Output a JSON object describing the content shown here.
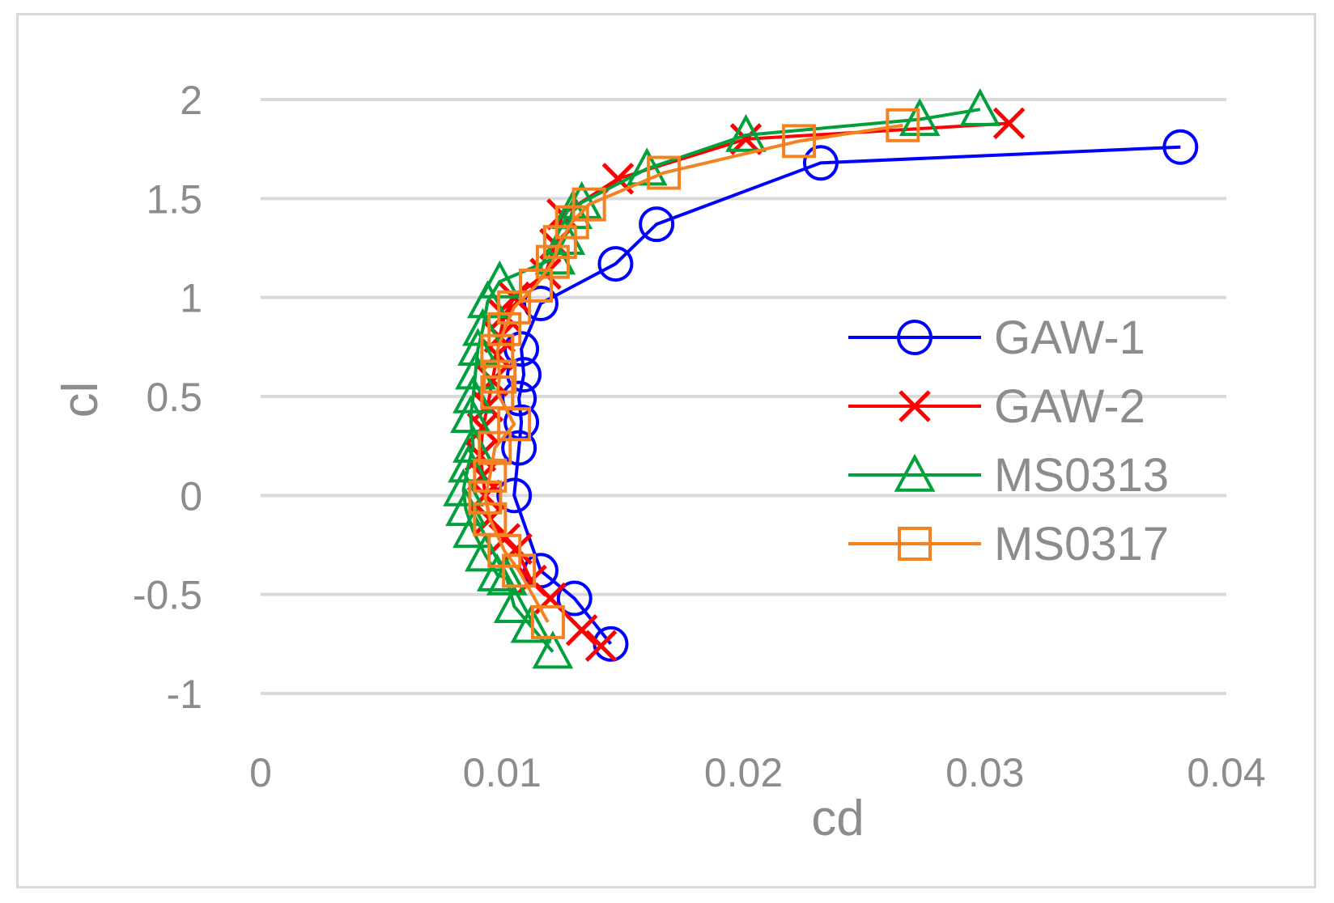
{
  "chart_data": {
    "type": "scatter",
    "title": "",
    "xlabel": "cd",
    "ylabel": "cl",
    "xlim": [
      0,
      0.04
    ],
    "ylim": [
      -1,
      2
    ],
    "xticks": [
      0,
      0.01,
      0.02,
      0.03,
      0.04
    ],
    "xtick_labels": [
      "0",
      "0.01",
      "0.02",
      "0.03",
      "0.04"
    ],
    "yticks": [
      -1,
      -0.5,
      0,
      0.5,
      1,
      1.5,
      2
    ],
    "ytick_labels": [
      "-1",
      "-0.5",
      "0",
      "0.5",
      "1",
      "1.5",
      "2"
    ],
    "grid": "horizontal",
    "legend_position": "right",
    "series": [
      {
        "name": "GAW-1",
        "color": "#0000ff",
        "marker": "circle",
        "points": [
          [
            0.0145,
            -0.75
          ],
          [
            0.013,
            -0.52
          ],
          [
            0.0116,
            -0.38
          ],
          [
            0.0105,
            0.0
          ],
          [
            0.0107,
            0.24
          ],
          [
            0.0108,
            0.37
          ],
          [
            0.0107,
            0.49
          ],
          [
            0.0109,
            0.61
          ],
          [
            0.0108,
            0.74
          ],
          [
            0.0116,
            0.97
          ],
          [
            0.0147,
            1.17
          ],
          [
            0.0164,
            1.37
          ],
          [
            0.0232,
            1.68
          ],
          [
            0.0381,
            1.76
          ]
        ]
      },
      {
        "name": "GAW-2",
        "color": "#ff0000",
        "marker": "x",
        "points": [
          [
            0.0141,
            -0.76
          ],
          [
            0.0133,
            -0.68
          ],
          [
            0.012,
            -0.52
          ],
          [
            0.0112,
            -0.43
          ],
          [
            0.0106,
            -0.27
          ],
          [
            0.0101,
            -0.22
          ],
          [
            0.0095,
            -0.12
          ],
          [
            0.0093,
            0.0
          ],
          [
            0.0092,
            0.1
          ],
          [
            0.0091,
            0.2
          ],
          [
            0.0092,
            0.34
          ],
          [
            0.0094,
            0.45
          ],
          [
            0.0096,
            0.58
          ],
          [
            0.0098,
            0.71
          ],
          [
            0.0099,
            0.8
          ],
          [
            0.0101,
            0.91
          ],
          [
            0.0105,
            1.0
          ],
          [
            0.0118,
            1.12
          ],
          [
            0.0122,
            1.27
          ],
          [
            0.0125,
            1.42
          ],
          [
            0.0148,
            1.6
          ],
          [
            0.0201,
            1.8
          ],
          [
            0.031,
            1.88
          ]
        ]
      },
      {
        "name": "MS0313",
        "color": "#00a03c",
        "marker": "triangle",
        "points": [
          [
            0.0121,
            -0.79
          ],
          [
            0.0112,
            -0.66
          ],
          [
            0.0105,
            -0.56
          ],
          [
            0.0102,
            -0.42
          ],
          [
            0.0098,
            -0.4
          ],
          [
            0.0093,
            -0.3
          ],
          [
            0.0088,
            -0.18
          ],
          [
            0.0085,
            -0.07
          ],
          [
            0.0084,
            0.03
          ],
          [
            0.0086,
            0.15
          ],
          [
            0.0088,
            0.25
          ],
          [
            0.0087,
            0.4
          ],
          [
            0.0088,
            0.5
          ],
          [
            0.0089,
            0.62
          ],
          [
            0.009,
            0.74
          ],
          [
            0.0092,
            0.84
          ],
          [
            0.0094,
            0.98
          ],
          [
            0.0099,
            1.08
          ],
          [
            0.0122,
            1.2
          ],
          [
            0.0126,
            1.3
          ],
          [
            0.0129,
            1.43
          ],
          [
            0.0133,
            1.48
          ],
          [
            0.016,
            1.65
          ],
          [
            0.0201,
            1.82
          ],
          [
            0.0273,
            1.9
          ],
          [
            0.0298,
            1.95
          ]
        ]
      },
      {
        "name": "MS0317",
        "color": "#f58220",
        "marker": "square",
        "points": [
          [
            0.0119,
            -0.64
          ],
          [
            0.0107,
            -0.38
          ],
          [
            0.0101,
            -0.28
          ],
          [
            0.0095,
            -0.12
          ],
          [
            0.0093,
            -0.01
          ],
          [
            0.0095,
            0.1
          ],
          [
            0.0097,
            0.24
          ],
          [
            0.0105,
            0.36
          ],
          [
            0.0098,
            0.52
          ],
          [
            0.0099,
            0.6
          ],
          [
            0.0098,
            0.73
          ],
          [
            0.0101,
            0.84
          ],
          [
            0.0105,
            0.95
          ],
          [
            0.0114,
            1.06
          ],
          [
            0.0121,
            1.18
          ],
          [
            0.0124,
            1.28
          ],
          [
            0.0129,
            1.38
          ],
          [
            0.0136,
            1.47
          ],
          [
            0.0167,
            1.63
          ],
          [
            0.0223,
            1.79
          ],
          [
            0.0266,
            1.87
          ]
        ]
      }
    ]
  }
}
